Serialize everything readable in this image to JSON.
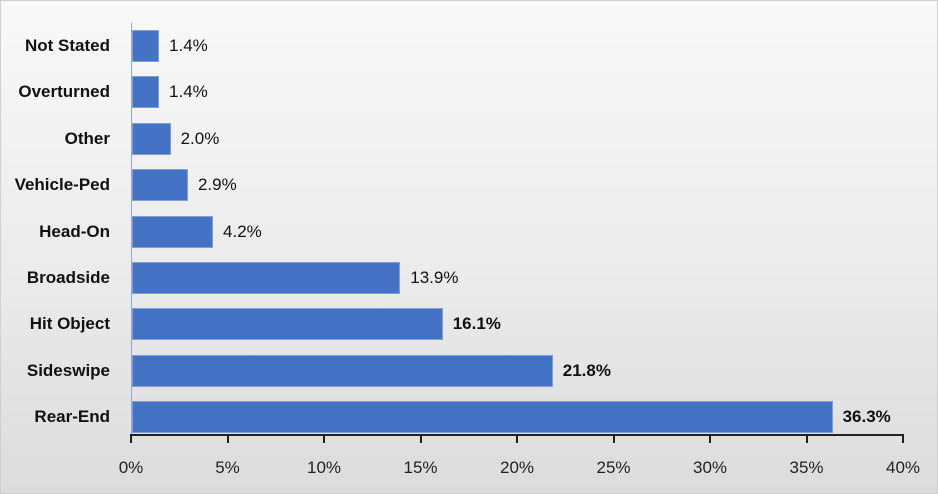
{
  "chart_data": {
    "type": "bar",
    "orientation": "horizontal",
    "title": "",
    "xlabel": "",
    "ylabel": "",
    "categories": [
      "Not Stated",
      "Overturned",
      "Other",
      "Vehicle-Ped",
      "Head-On",
      "Broadside",
      "Hit Object",
      "Sideswipe",
      "Rear-End"
    ],
    "values": [
      1.4,
      1.4,
      2.0,
      2.9,
      4.2,
      13.9,
      16.1,
      21.8,
      36.3
    ],
    "value_labels": [
      "1.4%",
      "1.4%",
      "2.0%",
      "2.9%",
      "4.2%",
      "13.9%",
      "16.1%",
      "21.8%",
      "36.3%"
    ],
    "bold_labels": [
      false,
      false,
      false,
      false,
      false,
      false,
      true,
      true,
      true
    ],
    "xlim": [
      0,
      40
    ],
    "x_ticks": [
      "0%",
      "5%",
      "10%",
      "15%",
      "20%",
      "25%",
      "30%",
      "35%",
      "40%"
    ],
    "bar_color": "#4472c4",
    "grid": false,
    "legend": null
  }
}
